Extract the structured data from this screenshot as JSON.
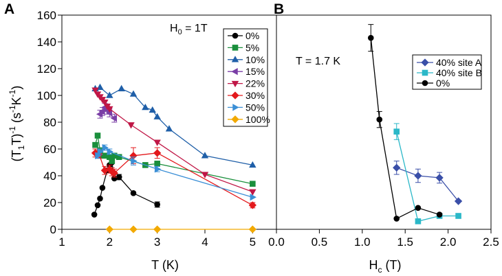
{
  "chart_data": [
    {
      "panel": "A",
      "type": "line",
      "xlabel": "T (K)",
      "ylabel": "(T1T)^-1 (s^-1 K^-1)",
      "ylabel_parts": {
        "l1": "(T",
        "l2": "1",
        "l3": "T)",
        "l4": "-1",
        "l5": " (s",
        "l6": "-1",
        "l7": "K",
        "l8": "-1",
        "l9": ")"
      },
      "xlim": [
        1,
        5.5
      ],
      "ylim": [
        0,
        160
      ],
      "xticks": [
        1,
        2,
        3,
        4,
        5
      ],
      "yticks": [
        0,
        20,
        40,
        60,
        80,
        100,
        120,
        140,
        160
      ],
      "annotation": {
        "text_main": "H",
        "text_sub": "0",
        "text_rest": " = 1T"
      },
      "legend_position": "top-right",
      "series": [
        {
          "name": "0%",
          "color": "#000000",
          "marker": "circle",
          "x": [
            1.68,
            1.75,
            1.8,
            1.85,
            1.95,
            2.0,
            2.05,
            2.1,
            2.2,
            2.5,
            3.0
          ],
          "y": [
            11,
            18,
            23,
            31,
            44,
            48,
            50,
            38,
            39,
            27,
            18.5
          ],
          "err": [
            0,
            0,
            0,
            0,
            0,
            0,
            0,
            0,
            2,
            0,
            2
          ]
        },
        {
          "name": "5%",
          "color": "#1a8f3c",
          "marker": "square",
          "x": [
            1.7,
            1.75,
            1.8,
            1.85,
            1.9,
            2.0,
            2.05,
            2.1,
            2.2,
            2.75,
            3.0,
            5.0
          ],
          "y": [
            63,
            70,
            59,
            55,
            55,
            54,
            51,
            55,
            54,
            48,
            49,
            34
          ],
          "err": [
            0,
            0,
            0,
            0,
            0,
            0,
            0,
            0,
            0,
            0,
            2,
            0
          ]
        },
        {
          "name": "10%",
          "color": "#1f5fa8",
          "marker": "triangle-up",
          "x": [
            1.7,
            1.8,
            2.0,
            2.25,
            2.5,
            2.75,
            2.9,
            3.0,
            3.25,
            4.0,
            5.0
          ],
          "y": [
            105,
            106,
            100,
            105,
            101,
            91,
            89,
            84,
            75,
            55,
            48
          ],
          "err": [
            0,
            0,
            0,
            0,
            0,
            0,
            0,
            0,
            0,
            0,
            0
          ]
        },
        {
          "name": "15%",
          "color": "#7a3ea6",
          "marker": "triangle-left",
          "x": [
            1.8,
            1.85,
            1.9,
            1.95,
            2.0,
            2.1
          ],
          "y": [
            86,
            88,
            91,
            89,
            87,
            83
          ],
          "err": [
            3,
            3,
            3,
            3,
            3,
            3
          ]
        },
        {
          "name": "22%",
          "color": "#c01746",
          "marker": "triangle-down",
          "x": [
            1.7,
            1.75,
            1.8,
            1.85,
            1.9,
            1.95,
            2.0,
            2.45,
            3.0,
            4.0,
            5.0
          ],
          "y": [
            104,
            101,
            99,
            97,
            95,
            92,
            90,
            78,
            65,
            41,
            28
          ],
          "err": [
            0,
            0,
            0,
            0,
            0,
            0,
            0,
            0,
            0,
            0,
            0
          ]
        },
        {
          "name": "30%",
          "color": "#e3191c",
          "marker": "diamond",
          "x": [
            1.7,
            1.78,
            1.9,
            2.0,
            2.05,
            2.1,
            2.5,
            3.0,
            5.0
          ],
          "y": [
            57,
            56,
            44,
            45,
            43,
            42,
            55,
            57,
            18
          ],
          "err": [
            3,
            3,
            3,
            3,
            3,
            3,
            6,
            4,
            2
          ]
        },
        {
          "name": "50%",
          "color": "#3b8fd6",
          "marker": "triangle-right",
          "x": [
            1.75,
            1.8,
            1.9,
            2.0,
            2.5,
            3.0,
            5.0
          ],
          "y": [
            55,
            58,
            61,
            58,
            51,
            45,
            24
          ],
          "err": [
            2,
            2,
            2,
            2,
            3,
            2,
            0
          ]
        },
        {
          "name": "100%",
          "color": "#f2a900",
          "marker": "diamond",
          "x": [
            2.0,
            2.5,
            3.0,
            5.0
          ],
          "y": [
            0,
            0,
            0,
            0
          ],
          "err": [
            0,
            0,
            0,
            0
          ]
        }
      ]
    },
    {
      "panel": "B",
      "type": "line",
      "xlabel": "Hc (T)",
      "xlabel_parts": {
        "main": "H",
        "sub": "c",
        "rest": " (T)"
      },
      "xlim": [
        0,
        2.5
      ],
      "ylim": [
        0,
        160
      ],
      "xticks": [
        "0.0",
        "0.5",
        "1.0",
        "1.5",
        "2.0",
        "2.5"
      ],
      "xtick_values": [
        0,
        0.5,
        1.0,
        1.5,
        2.0,
        2.5
      ],
      "annotation": {
        "text": "T = 1.7 K"
      },
      "legend_position": "top-right",
      "series": [
        {
          "name": "40% site A",
          "color": "#3a4fa8",
          "marker": "diamond",
          "x": [
            1.4,
            1.65,
            1.9,
            2.12
          ],
          "y": [
            46,
            40,
            38.5,
            21
          ],
          "err": [
            5,
            5,
            4,
            0
          ]
        },
        {
          "name": "40% site B",
          "color": "#2bb8c8",
          "marker": "square",
          "x": [
            1.4,
            1.65,
            1.9,
            2.12
          ],
          "y": [
            73,
            6,
            10,
            10
          ],
          "err": [
            6,
            0,
            0,
            0
          ]
        },
        {
          "name": "0%",
          "color": "#000000",
          "marker": "circle",
          "x": [
            1.1,
            1.2,
            1.4,
            1.65,
            1.9
          ],
          "y": [
            143,
            82,
            8,
            16,
            11
          ],
          "err": [
            10,
            6,
            0,
            0,
            0
          ]
        }
      ]
    }
  ]
}
